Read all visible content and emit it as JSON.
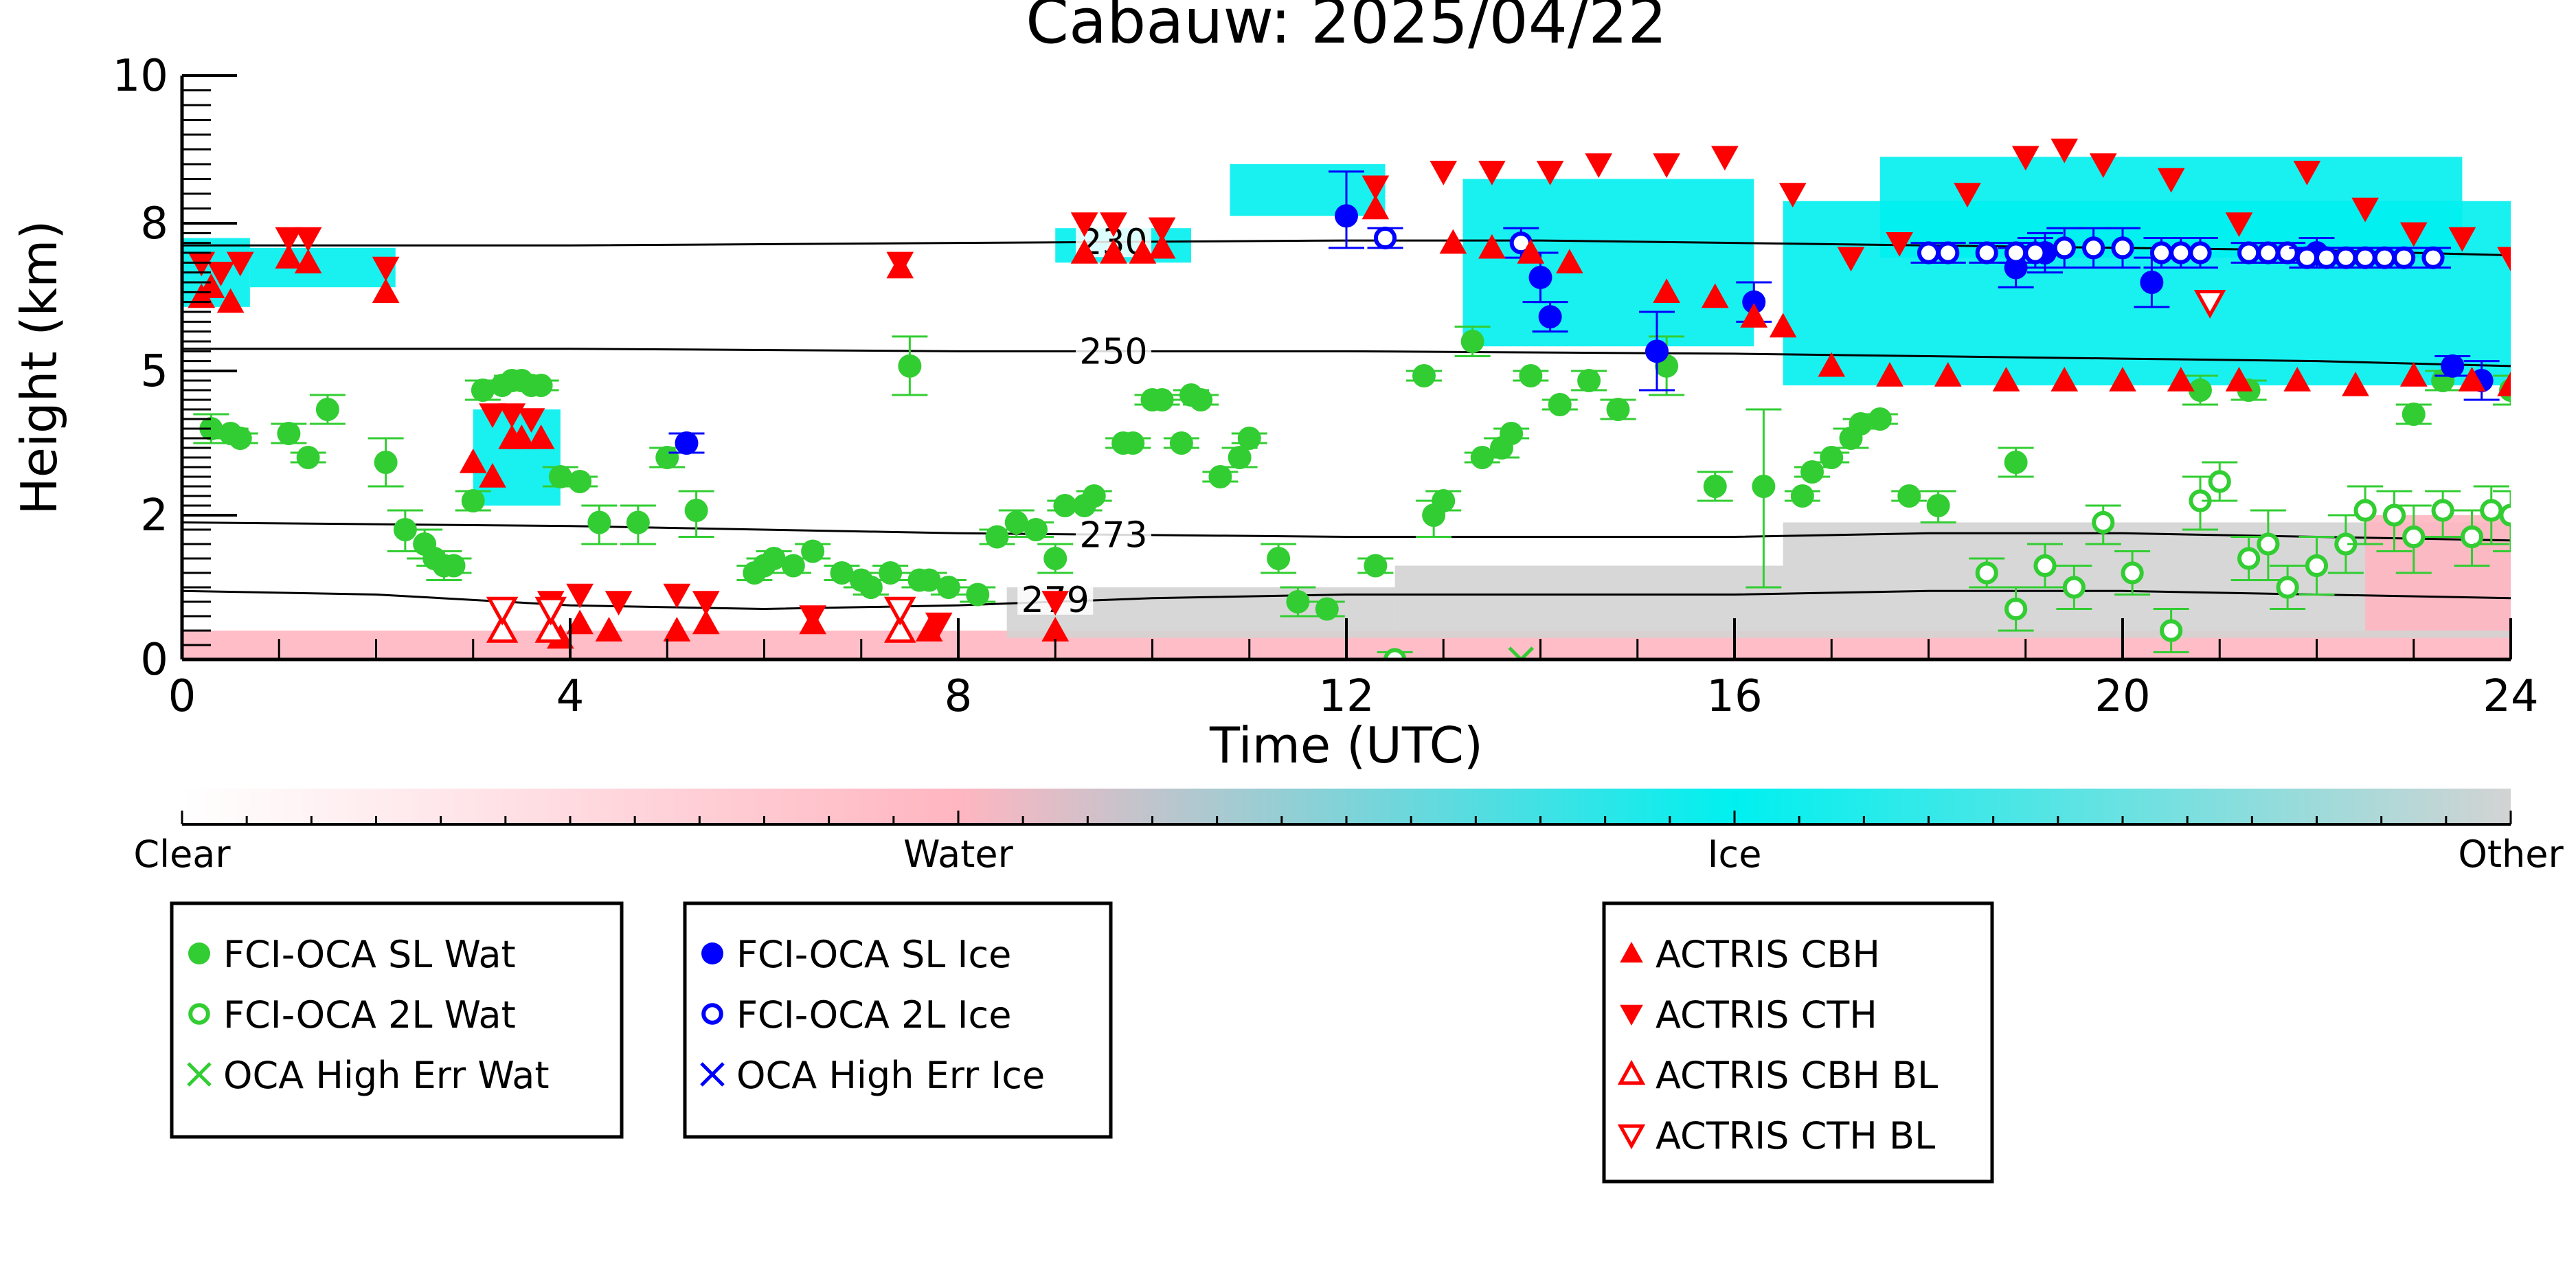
{
  "chart_data": {
    "type": "scatter",
    "title": "Cabauw: 2025/04/22",
    "xlabel": "Time (UTC)",
    "ylabel": "Height (km)",
    "xlim": [
      0,
      24
    ],
    "ylim": [
      0,
      10
    ],
    "x_ticks": [
      "0",
      "4",
      "8",
      "12",
      "16",
      "20",
      "24"
    ],
    "y_ticks": [
      "0",
      "2",
      "5",
      "8",
      "10"
    ],
    "grid": false,
    "colorbar": {
      "labels": [
        "Clear",
        "Water",
        "Ice",
        "Other"
      ],
      "colors": {
        "clear": "#ffffff",
        "water": "#ffb6c1",
        "ice": "#00f0f0",
        "other": "#d3d3d3"
      }
    },
    "isotherms": [
      {
        "label": "230",
        "x": [
          0,
          4,
          8,
          12,
          14,
          16,
          18,
          20,
          22,
          24
        ],
        "y": [
          7.55,
          7.55,
          7.6,
          7.65,
          7.65,
          7.6,
          7.55,
          7.5,
          7.45,
          7.35
        ]
      },
      {
        "label": "250",
        "x": [
          0,
          4,
          8,
          12,
          16,
          18,
          20,
          22,
          24
        ],
        "y": [
          5.45,
          5.45,
          5.4,
          5.4,
          5.35,
          5.3,
          5.25,
          5.2,
          5.1
        ]
      },
      {
        "label": "273",
        "x": [
          0,
          4,
          8,
          12,
          16,
          18,
          20,
          22,
          24
        ],
        "y": [
          1.9,
          1.85,
          1.75,
          1.7,
          1.7,
          1.75,
          1.75,
          1.7,
          1.65
        ]
      },
      {
        "label": "279",
        "x": [
          0,
          2,
          4,
          6,
          8,
          10,
          12,
          16,
          18,
          20,
          22,
          24
        ],
        "y": [
          0.95,
          0.9,
          0.75,
          0.7,
          0.75,
          0.85,
          0.9,
          0.9,
          0.95,
          0.95,
          0.9,
          0.85
        ]
      }
    ],
    "series": [
      {
        "name": "FCI-OCA SL Wat",
        "color": "#32cd32",
        "marker": "circle-filled",
        "x": [
          0.3,
          0.5,
          0.6,
          1.1,
          1.3,
          1.5,
          2.1,
          2.3,
          2.5,
          2.6,
          2.7,
          2.8,
          3.0,
          3.1,
          3.3,
          3.4,
          3.5,
          3.6,
          3.7,
          3.9,
          4.1,
          4.3,
          4.7,
          5.0,
          5.3,
          5.9,
          6.0,
          6.1,
          6.3,
          6.5,
          6.8,
          7.0,
          7.1,
          7.3,
          7.5,
          7.6,
          7.7,
          7.9,
          8.2,
          8.4,
          8.6,
          8.8,
          9.0,
          9.1,
          9.3,
          9.4,
          9.7,
          9.8,
          10.0,
          10.1,
          10.3,
          10.4,
          10.5,
          10.7,
          10.9,
          11.0,
          11.3,
          11.5,
          11.8,
          12.3,
          12.8,
          12.9,
          13.0,
          13.3,
          13.4,
          13.6,
          13.7,
          13.9,
          14.2,
          14.5,
          14.8,
          15.3,
          15.8,
          16.3,
          16.7,
          16.8,
          17.0,
          17.2,
          17.3,
          17.5,
          17.8,
          18.1,
          18.9,
          20.8,
          21.3,
          23.0,
          23.3,
          24.0
        ],
        "y": [
          3.8,
          3.7,
          3.6,
          3.7,
          3.2,
          4.2,
          3.1,
          1.8,
          1.6,
          1.4,
          1.3,
          1.3,
          2.3,
          4.6,
          4.7,
          4.8,
          4.8,
          4.7,
          4.7,
          2.8,
          2.7,
          1.9,
          1.9,
          3.2,
          2.1,
          1.2,
          1.3,
          1.4,
          1.3,
          1.5,
          1.2,
          1.1,
          1.0,
          1.2,
          5.1,
          1.1,
          1.1,
          1.0,
          0.9,
          1.7,
          1.9,
          1.8,
          1.4,
          2.2,
          2.2,
          2.4,
          3.5,
          3.5,
          4.4,
          4.4,
          3.5,
          4.5,
          4.4,
          2.8,
          3.2,
          3.6,
          1.4,
          0.8,
          0.7,
          1.3,
          4.9,
          2.0,
          2.3,
          5.6,
          3.2,
          3.4,
          3.7,
          4.9,
          4.3,
          4.8,
          4.2,
          5.1,
          2.6,
          2.6,
          2.4,
          2.9,
          3.2,
          3.6,
          3.9,
          4.0,
          2.4,
          2.2,
          3.1,
          4.6,
          4.6,
          4.1,
          4.8,
          4.6
        ],
        "err": [
          0.3,
          0.1,
          0.1,
          0.2,
          0.1,
          0.3,
          0.5,
          0.3,
          0.2,
          0.1,
          0.2,
          0.1,
          0.2,
          0.2,
          0.1,
          0.1,
          0.1,
          0.1,
          0.1,
          0.2,
          0.1,
          0.3,
          0.3,
          0.2,
          0.4,
          0.1,
          0.1,
          0.1,
          0.1,
          0.1,
          0.1,
          0.1,
          0.1,
          0.1,
          0.6,
          0.1,
          0.1,
          0.1,
          0.1,
          0.1,
          0.2,
          0.1,
          0.2,
          0.1,
          0.1,
          0.1,
          0.1,
          0.1,
          0.1,
          0.1,
          0.1,
          0.1,
          0.1,
          0.1,
          0.2,
          0.1,
          0.2,
          0.2,
          0.1,
          0.1,
          0.1,
          0.3,
          0.2,
          0.3,
          0.1,
          0.2,
          0.1,
          0.1,
          0.1,
          0.2,
          0.2,
          0.6,
          0.3,
          1.6,
          0.1,
          0.1,
          0.1,
          0.2,
          0.1,
          0.1,
          0.1,
          0.3,
          0.3,
          0.3,
          0.2,
          0.2,
          0.2,
          0.3
        ]
      },
      {
        "name": "FCI-OCA 2L Wat",
        "color": "#32cd32",
        "marker": "circle-open",
        "x": [
          12.5,
          18.6,
          18.9,
          19.2,
          19.5,
          19.8,
          20.1,
          20.5,
          20.8,
          21.0,
          21.3,
          21.5,
          21.7,
          22.0,
          22.3,
          22.5,
          22.8,
          23.0,
          23.3,
          23.6,
          23.8,
          24.0
        ],
        "y": [
          0.0,
          1.2,
          0.7,
          1.3,
          1.0,
          1.9,
          1.2,
          0.4,
          2.3,
          2.7,
          1.4,
          1.6,
          1.0,
          1.3,
          1.6,
          2.1,
          2.0,
          1.7,
          2.1,
          1.7,
          2.1,
          2.0
        ],
        "err": [
          0.1,
          0.2,
          0.3,
          0.3,
          0.3,
          0.3,
          0.3,
          0.3,
          0.5,
          0.4,
          0.3,
          0.5,
          0.3,
          0.4,
          0.4,
          0.5,
          0.5,
          0.5,
          0.4,
          0.4,
          0.5,
          0.5
        ]
      },
      {
        "name": "OCA High Err Wat",
        "color": "#32cd32",
        "marker": "x",
        "x": [
          13.8
        ],
        "y": [
          0.0
        ]
      },
      {
        "name": "FCI-OCA SL Ice",
        "color": "#0000ff",
        "marker": "circle-filled",
        "x": [
          5.2,
          12.0,
          14.0,
          14.1,
          15.2,
          16.2,
          18.9,
          19.2,
          20.3,
          22.0,
          23.4,
          23.7
        ],
        "y": [
          3.5,
          8.1,
          6.9,
          6.1,
          5.4,
          6.4,
          7.1,
          7.4,
          6.8,
          7.4,
          5.1,
          4.8
        ],
        "err": [
          0.2,
          0.6,
          0.5,
          0.3,
          0.8,
          0.4,
          0.4,
          0.4,
          0.5,
          0.3,
          0.2,
          0.4
        ]
      },
      {
        "name": "FCI-OCA 2L Ice",
        "color": "#0000ff",
        "marker": "circle-open",
        "x": [
          12.4,
          13.8,
          18.0,
          18.2,
          18.6,
          18.9,
          19.1,
          19.4,
          19.7,
          20.0,
          20.4,
          20.6,
          20.8,
          21.3,
          21.5,
          21.7,
          21.9,
          22.1,
          22.3,
          22.5,
          22.7,
          22.9,
          23.2
        ],
        "y": [
          7.7,
          7.6,
          7.4,
          7.4,
          7.4,
          7.4,
          7.4,
          7.5,
          7.5,
          7.5,
          7.4,
          7.4,
          7.4,
          7.4,
          7.4,
          7.4,
          7.3,
          7.3,
          7.3,
          7.3,
          7.3,
          7.3,
          7.3
        ],
        "err": [
          0.2,
          0.3,
          0.2,
          0.2,
          0.2,
          0.2,
          0.3,
          0.4,
          0.4,
          0.4,
          0.3,
          0.3,
          0.3,
          0.2,
          0.2,
          0.2,
          0.2,
          0.2,
          0.2,
          0.2,
          0.2,
          0.2,
          0.2
        ]
      },
      {
        "name": "OCA High Err Ice",
        "color": "#0000ff",
        "marker": "x",
        "x": [],
        "y": []
      },
      {
        "name": "ACTRIS CBH",
        "color": "#ff0000",
        "marker": "triangle-up-filled",
        "x": [
          0.2,
          0.3,
          0.5,
          1.1,
          1.3,
          2.1,
          3.0,
          3.2,
          3.4,
          3.5,
          3.7,
          3.9,
          4.1,
          4.4,
          5.1,
          5.4,
          6.5,
          7.4,
          7.7,
          9.0,
          9.3,
          9.6,
          9.9,
          10.1,
          12.3,
          13.1,
          13.5,
          13.9,
          14.3,
          15.3,
          15.8,
          16.2,
          16.5,
          17.0,
          17.6,
          18.2,
          18.8,
          19.4,
          20.0,
          20.6,
          21.2,
          21.8,
          22.4,
          23.0,
          23.6,
          24.0
        ],
        "y": [
          6.5,
          6.7,
          6.4,
          7.3,
          7.2,
          6.6,
          3.1,
          2.8,
          3.6,
          3.6,
          3.6,
          0.3,
          0.5,
          0.4,
          0.4,
          0.5,
          0.5,
          7.1,
          0.4,
          0.4,
          7.4,
          7.4,
          7.4,
          7.5,
          8.2,
          7.6,
          7.5,
          7.4,
          7.2,
          6.6,
          6.5,
          6.1,
          5.9,
          5.1,
          4.9,
          4.9,
          4.8,
          4.8,
          4.8,
          4.8,
          4.8,
          4.8,
          4.7,
          4.9,
          4.8,
          4.7
        ]
      },
      {
        "name": "ACTRIS CTH",
        "color": "#ff0000",
        "marker": "triangle-down-filled",
        "x": [
          0.2,
          0.4,
          0.6,
          1.1,
          1.3,
          2.1,
          3.2,
          3.4,
          3.6,
          3.8,
          4.1,
          4.5,
          5.1,
          5.4,
          6.5,
          7.4,
          7.8,
          9.0,
          9.3,
          9.6,
          10.1,
          12.3,
          13.0,
          13.5,
          14.1,
          14.6,
          15.3,
          15.9,
          16.6,
          17.2,
          17.7,
          18.4,
          19.0,
          19.4,
          19.8,
          20.5,
          21.2,
          21.9,
          22.5,
          23.0,
          23.5,
          24.0
        ],
        "y": [
          7.2,
          7.0,
          7.2,
          7.7,
          7.7,
          7.1,
          4.1,
          4.1,
          4.0,
          0.8,
          0.9,
          0.8,
          0.9,
          0.8,
          0.6,
          7.2,
          0.5,
          0.8,
          8.0,
          8.0,
          7.9,
          8.5,
          8.7,
          8.7,
          8.7,
          8.8,
          8.8,
          8.9,
          8.4,
          7.3,
          7.6,
          8.4,
          8.9,
          9.0,
          8.8,
          8.6,
          8.0,
          8.7,
          8.2,
          7.8,
          7.7,
          7.3
        ]
      },
      {
        "name": "ACTRIS CBH BL",
        "color": "#ff0000",
        "marker": "triangle-up-open",
        "x": [
          3.3,
          3.8,
          7.4
        ],
        "y": [
          0.4,
          0.4,
          0.4
        ]
      },
      {
        "name": "ACTRIS CTH BL",
        "color": "#ff0000",
        "marker": "triangle-down-open",
        "x": [
          3.3,
          3.8,
          7.4,
          20.9
        ],
        "y": [
          0.7,
          0.7,
          0.7,
          6.4
        ]
      }
    ],
    "legends": [
      {
        "entries": [
          "FCI-OCA SL Wat",
          "FCI-OCA 2L Wat",
          "OCA High Err Wat"
        ]
      },
      {
        "entries": [
          "FCI-OCA SL Ice",
          "FCI-OCA 2L Ice",
          "OCA High Err Ice"
        ]
      },
      {
        "entries": [
          "ACTRIS CBH",
          "ACTRIS CTH",
          "ACTRIS CBH BL",
          "ACTRIS CTH BL"
        ]
      }
    ]
  }
}
